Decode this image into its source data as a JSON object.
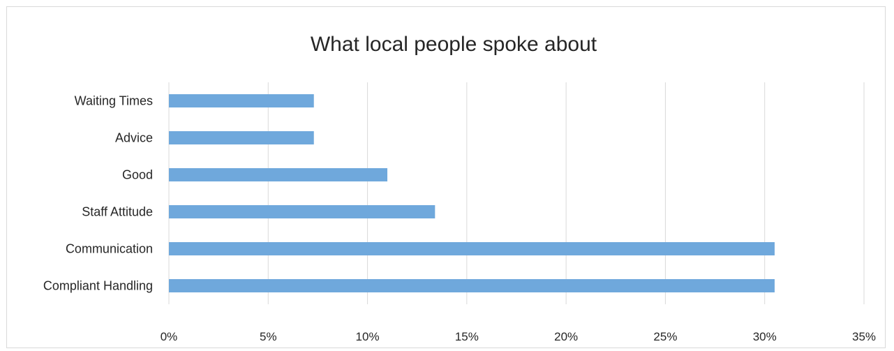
{
  "chart_data": {
    "type": "bar",
    "orientation": "horizontal",
    "title": "What local people spoke about",
    "xlabel": "",
    "ylabel": "",
    "categories": [
      "Compliant Handling",
      "Communication",
      "Staff Attitude",
      "Good",
      "Advice",
      "Waiting Times"
    ],
    "values": [
      30.5,
      30.5,
      13.4,
      11.0,
      7.3,
      7.3
    ],
    "xlim": [
      0,
      35
    ],
    "x_ticks": [
      0,
      5,
      10,
      15,
      20,
      25,
      30,
      35
    ],
    "x_tick_labels": [
      "0%",
      "5%",
      "10%",
      "15%",
      "20%",
      "25%",
      "30%",
      "35%"
    ],
    "grid": "vertical",
    "legend": "none",
    "bar_color": "#6fa8dc"
  }
}
